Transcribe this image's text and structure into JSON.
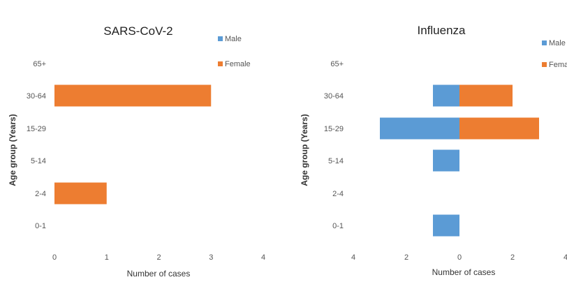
{
  "chart_data": [
    {
      "type": "bar",
      "orientation": "horizontal",
      "title": "SARS-CoV-2",
      "xlabel": "Number of cases",
      "ylabel": "Age group (Years)",
      "categories": [
        "0-1",
        "2-4",
        "5-14",
        "15-29",
        "30-64",
        "65+"
      ],
      "xlim": [
        0,
        4
      ],
      "xticks": [
        "0",
        "1",
        "2",
        "3",
        "4"
      ],
      "grid": false,
      "legend_position": "top-right",
      "series": [
        {
          "name": "Male",
          "color": "#5B9BD5",
          "values": [
            0,
            0,
            0,
            0,
            0,
            0
          ]
        },
        {
          "name": "Female",
          "color": "#ED7D31",
          "values": [
            0,
            1,
            0,
            0,
            3,
            0
          ]
        }
      ]
    },
    {
      "type": "bar",
      "orientation": "horizontal",
      "layout": "diverging",
      "title": "Influenza",
      "xlabel": "Number of cases",
      "ylabel": "Age group (Years)",
      "categories": [
        "0-1",
        "2-4",
        "5-14",
        "15-29",
        "30-64",
        "65+"
      ],
      "xlim": [
        -4,
        4
      ],
      "xticks": [
        "4",
        "2",
        "0",
        "2",
        "4"
      ],
      "grid": false,
      "legend_position": "top-right",
      "series": [
        {
          "name": "Male",
          "color": "#5B9BD5",
          "values": [
            1,
            0,
            1,
            3,
            1,
            0
          ]
        },
        {
          "name": "Female",
          "color": "#ED7D31",
          "values": [
            0,
            0,
            0,
            3,
            2,
            0
          ]
        }
      ]
    }
  ]
}
